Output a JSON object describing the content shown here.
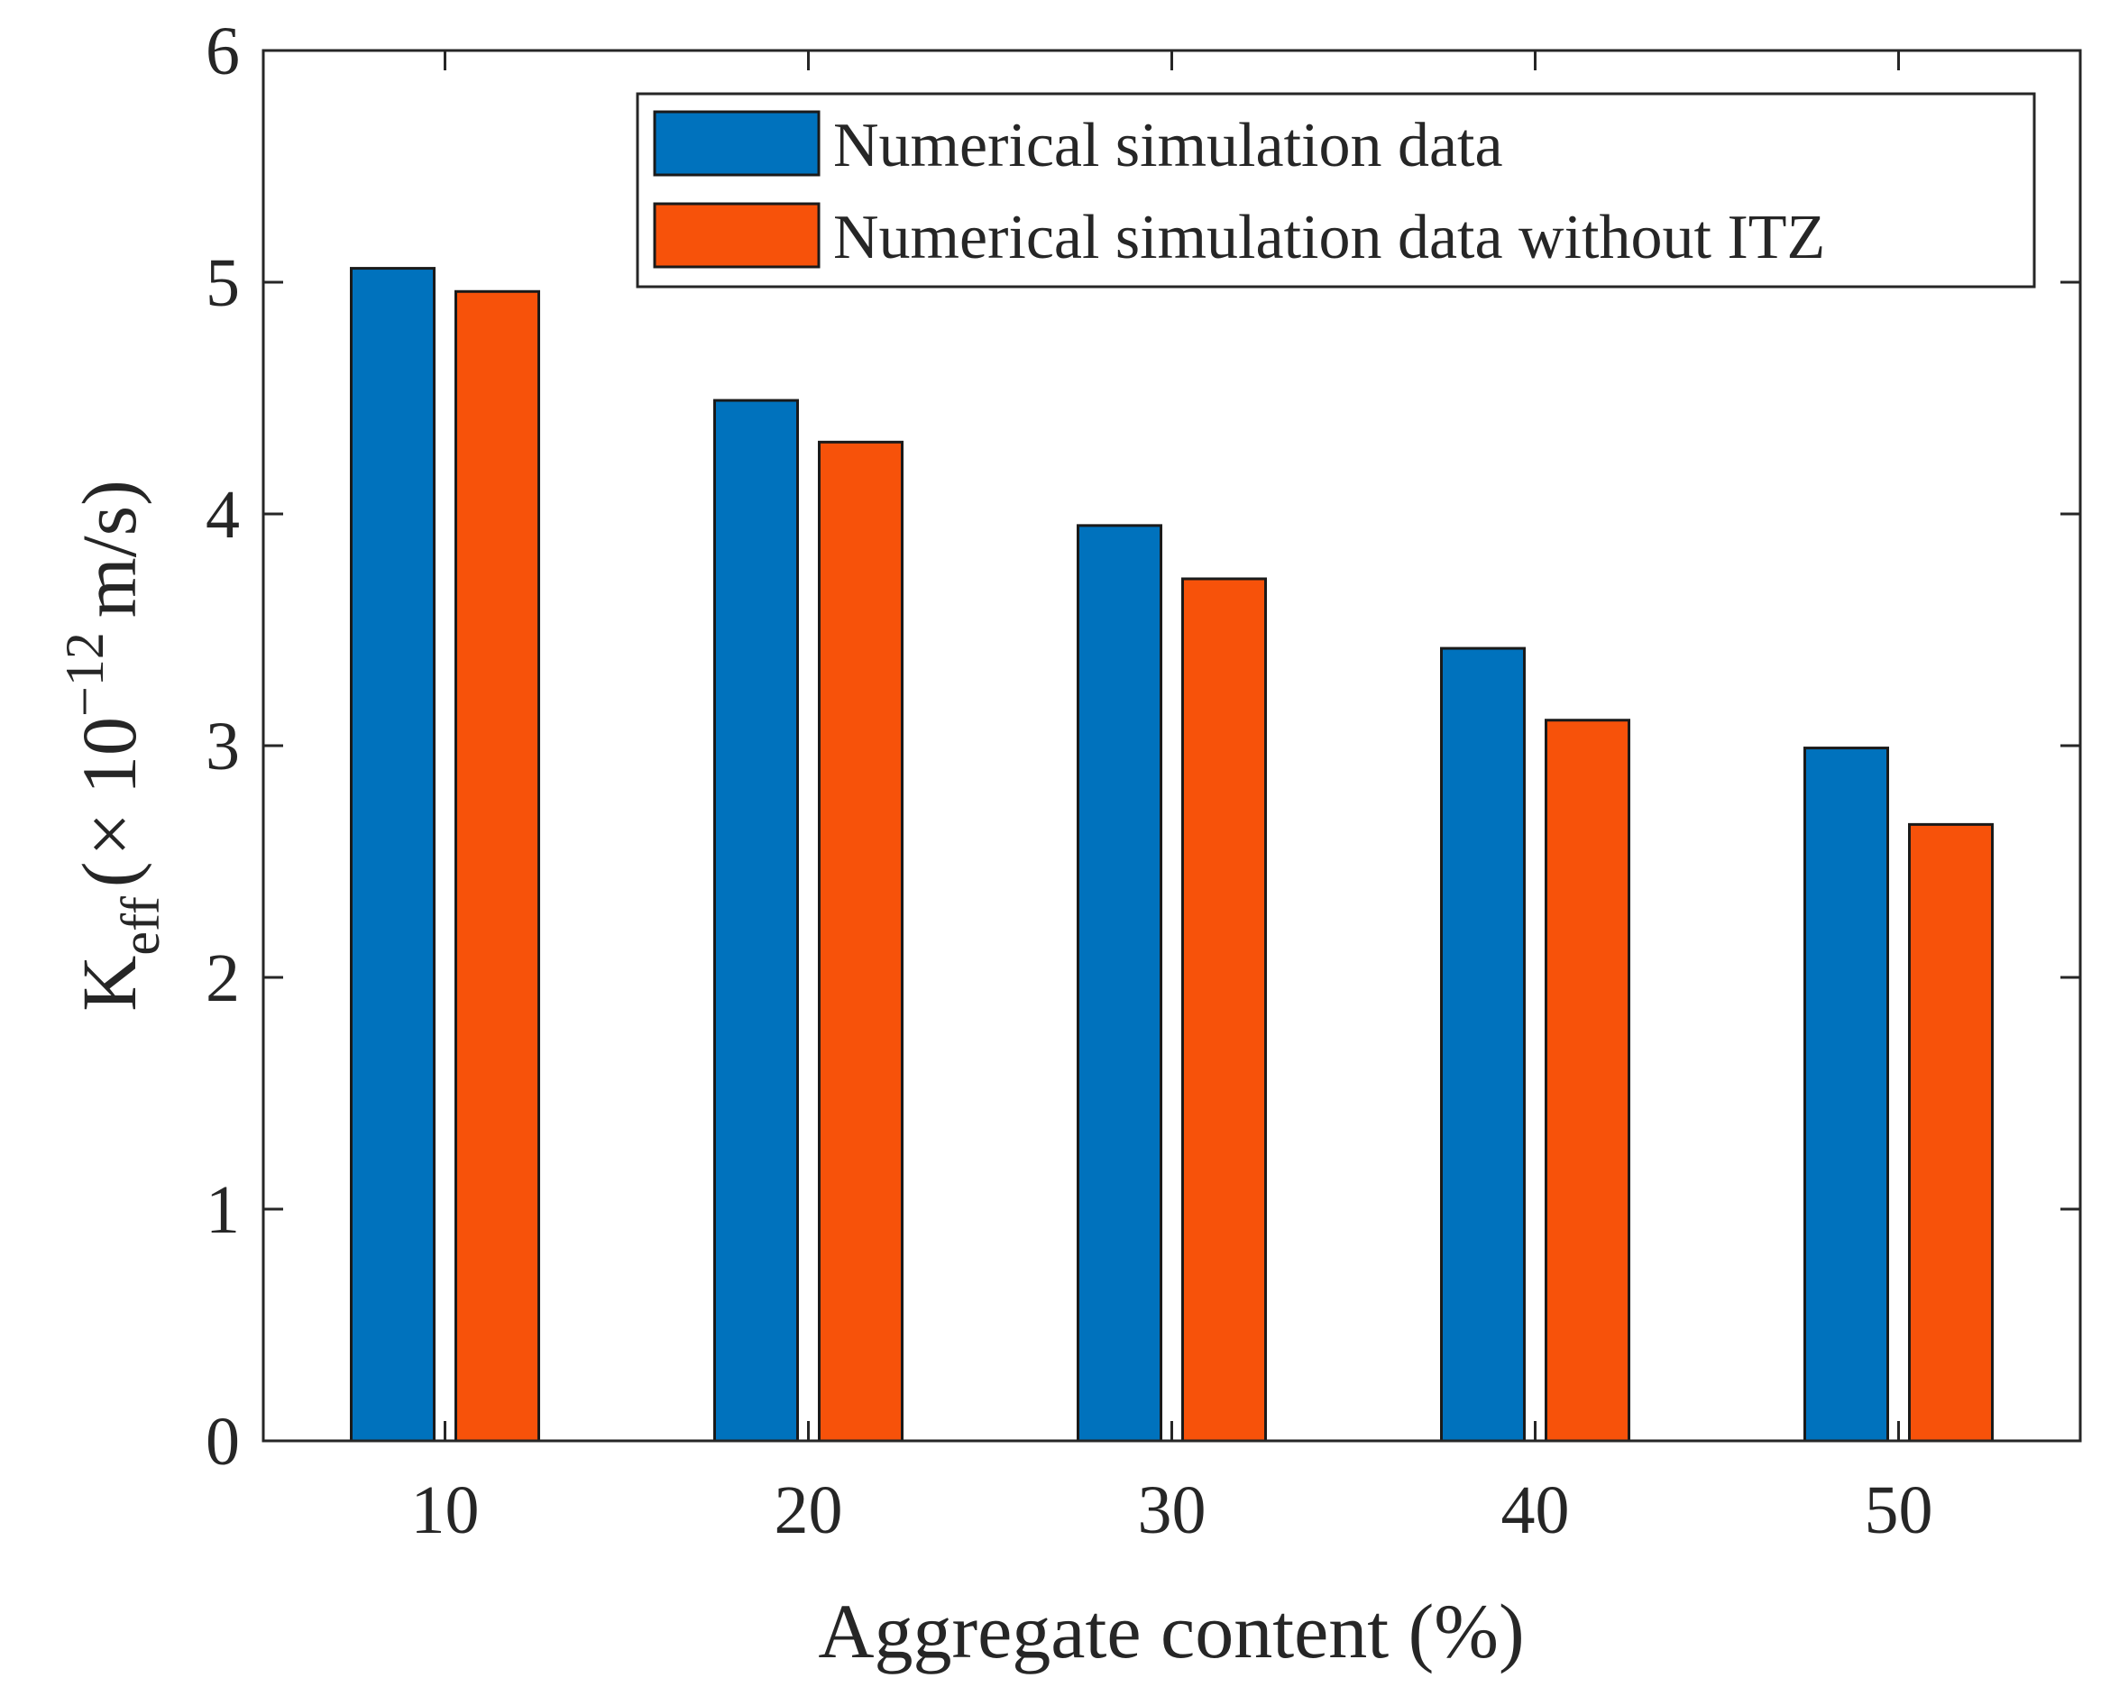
{
  "chart_data": {
    "type": "bar",
    "title": "",
    "xlabel": "Aggregate content (%)",
    "ylabel": {
      "main": "K",
      "sub": "eff",
      "paren_open": "(",
      "times": "×",
      "base": "10",
      "exp": "−12",
      "unit": "m/s)"
    },
    "categories": [
      "10",
      "20",
      "30",
      "40",
      "50"
    ],
    "series": [
      {
        "name": "Numerical simulation data",
        "color": "#0072BD",
        "values": [
          5.06,
          4.49,
          3.95,
          3.42,
          2.99
        ]
      },
      {
        "name": "Numerical simulation data without ITZ",
        "color": "#F7520A",
        "values": [
          4.96,
          4.31,
          3.72,
          3.11,
          2.66
        ]
      }
    ],
    "ylim": [
      0,
      6
    ],
    "yticks": [
      "0",
      "1",
      "2",
      "3",
      "4",
      "5",
      "6"
    ],
    "xlim": [
      5,
      55
    ],
    "legend": "top-right",
    "grid": false
  }
}
